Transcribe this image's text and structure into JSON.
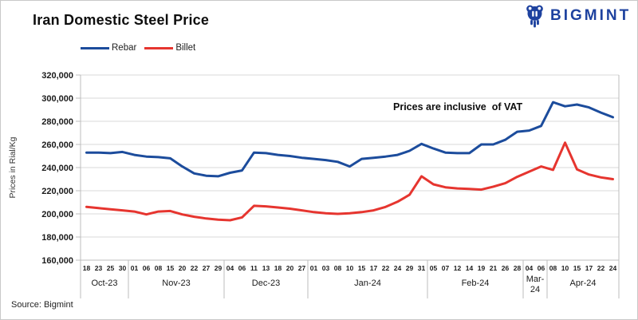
{
  "card": {
    "title": "Iran Domestic Steel Price",
    "annotation": "Prices are inclusive  of VAT",
    "source": "Source: Bigmint",
    "logo_text": "BIGMINT"
  },
  "colors": {
    "rebar": "#1c4c9c",
    "billet": "#e6352f",
    "logo": "#1e429f",
    "gridline": "#d9d9d9",
    "axis": "#bdbdbd",
    "tick_text": "#1a1a1a"
  },
  "chart_data": {
    "type": "line",
    "title": "Iran Domestic Steel Price",
    "xlabel": "",
    "ylabel": "Prices in Rial/Kg",
    "ylim": [
      160000,
      320000
    ],
    "ytick_step": 20000,
    "grid": true,
    "legend_position": "top-left",
    "annotation": "Prices are inclusive of VAT",
    "month_groups": [
      {
        "label": "Oct-23",
        "days": [
          "18",
          "23",
          "25",
          "30"
        ]
      },
      {
        "label": "Nov-23",
        "days": [
          "01",
          "06",
          "08",
          "15",
          "20",
          "22",
          "27",
          "29"
        ]
      },
      {
        "label": "Dec-23",
        "days": [
          "04",
          "06",
          "11",
          "13",
          "18",
          "20",
          "27"
        ]
      },
      {
        "label": "Jan-24",
        "days": [
          "01",
          "03",
          "08",
          "10",
          "15",
          "17",
          "22",
          "24",
          "29",
          "31"
        ]
      },
      {
        "label": "Feb-24",
        "days": [
          "05",
          "07",
          "12",
          "14",
          "19",
          "21",
          "26",
          "28"
        ]
      },
      {
        "label": "Mar-24",
        "days": [
          "04",
          "06"
        ]
      },
      {
        "label": "Apr-24",
        "days": [
          "08",
          "10",
          "15",
          "17",
          "22",
          "24"
        ]
      }
    ],
    "series": [
      {
        "name": "Rebar",
        "color": "#1c4c9c",
        "values": [
          253000,
          253000,
          252500,
          253500,
          251000,
          249500,
          249000,
          248000,
          241000,
          235000,
          233000,
          232500,
          235500,
          237500,
          253000,
          252500,
          251000,
          250000,
          248500,
          247500,
          246500,
          245000,
          241000,
          247500,
          248500,
          249500,
          251000,
          254500,
          260500,
          256500,
          253000,
          252500,
          252500,
          260000,
          260000,
          264000,
          271000,
          272000,
          276000,
          296500,
          293000,
          294500,
          292000,
          287500,
          283500
        ]
      },
      {
        "name": "Billet",
        "color": "#e6352f",
        "values": [
          206000,
          205000,
          204000,
          203000,
          202000,
          199500,
          202000,
          202500,
          199500,
          197500,
          196000,
          195000,
          194500,
          197000,
          207000,
          206500,
          205500,
          204500,
          203000,
          201500,
          200500,
          200000,
          200500,
          201500,
          203000,
          206000,
          210500,
          216500,
          232500,
          225500,
          223000,
          222000,
          221500,
          221000,
          223500,
          226500,
          232000,
          236500,
          241000,
          238000,
          261500,
          238500,
          234000,
          231500,
          230000
        ]
      }
    ]
  }
}
